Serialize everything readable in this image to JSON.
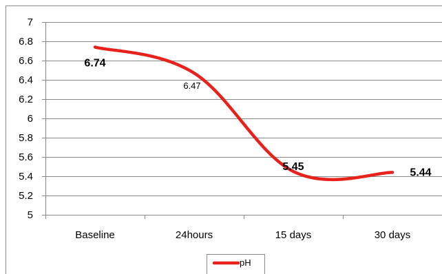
{
  "chart_data": {
    "type": "line",
    "title": "",
    "xlabel": "",
    "ylabel": "",
    "categories": [
      "Baseline",
      "24hours",
      "15 days",
      "30 days"
    ],
    "series": [
      {
        "name": "pH",
        "color": "#e8221a",
        "values": [
          6.74,
          6.47,
          5.45,
          5.44
        ],
        "data_labels": [
          "6.74",
          "6.47",
          "5.45",
          "5.44"
        ],
        "smoothed": true
      }
    ],
    "ylim": [
      5,
      7
    ],
    "yticks": [
      "5",
      "5.2",
      "5.4",
      "5.6",
      "5.8",
      "6",
      "6.2",
      "6.4",
      "6.6",
      "6.8",
      "7"
    ],
    "grid": true,
    "legend": "bottom-center"
  }
}
